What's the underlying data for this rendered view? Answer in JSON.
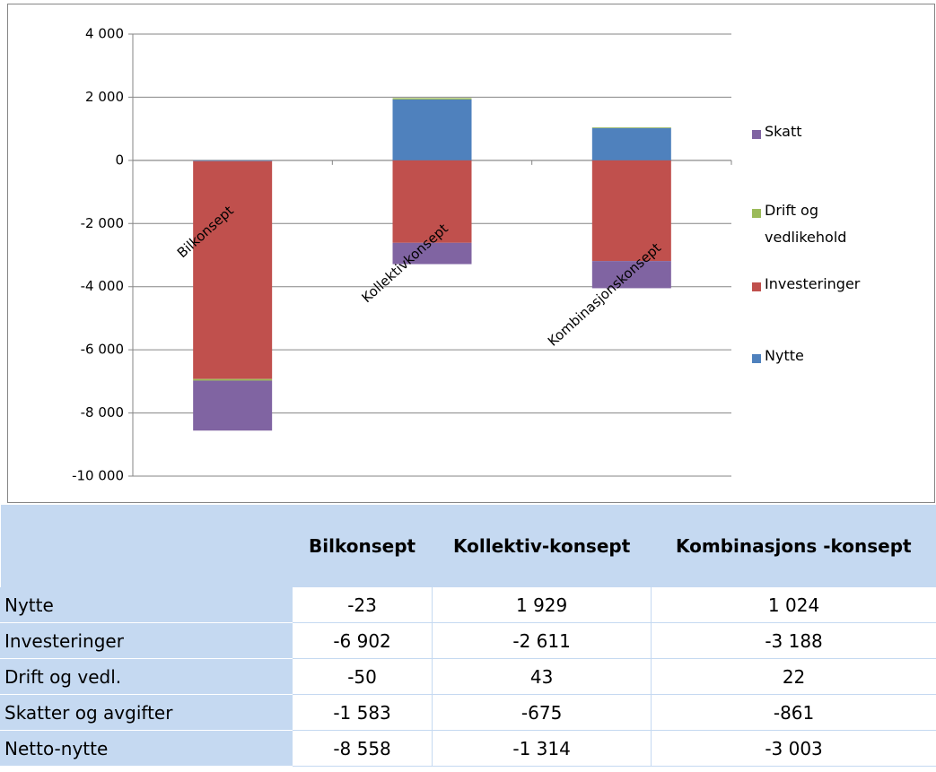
{
  "chart_data": {
    "type": "stacked_bar",
    "categories": [
      "Bilkonsept",
      "Kollektivkonsept",
      "Kombinasjonskonsept"
    ],
    "series": [
      {
        "name": "Nytte",
        "color": "#4f81bd",
        "values": [
          -23,
          1929,
          1024
        ]
      },
      {
        "name": "Investeringer",
        "color": "#c0504d",
        "values": [
          -6902,
          -2611,
          -3188
        ]
      },
      {
        "name": "Drift og vedlikehold",
        "color": "#9bbb59",
        "values": [
          -50,
          43,
          22
        ]
      },
      {
        "name": "Skatt",
        "color": "#8064a2",
        "values": [
          -1583,
          -675,
          -861
        ]
      }
    ],
    "ylim": [
      -10000,
      4000
    ],
    "yticks": [
      {
        "value": -10000,
        "label": "-10 000"
      },
      {
        "value": -8000,
        "label": "-8 000"
      },
      {
        "value": -6000,
        "label": "-6 000"
      },
      {
        "value": -4000,
        "label": "-4 000"
      },
      {
        "value": -2000,
        "label": "-2 000"
      },
      0,
      {
        "value": 2000,
        "label": "2 000"
      },
      {
        "value": 4000,
        "label": "4 000"
      }
    ],
    "grid": true,
    "legend": "right"
  },
  "table": {
    "header": [
      "Bilkonsept",
      "Kollektiv-konsept",
      "Kombinasjons -konsept"
    ],
    "rows": [
      [
        "Nytte",
        "-23",
        "1 929",
        "1 024"
      ],
      [
        "Investeringer",
        "-6 902",
        "-2 611",
        "-3 188"
      ],
      [
        "Drift og vedl.",
        "-50",
        "43",
        "22"
      ],
      [
        "Skatter og avgifter",
        "-1 583",
        "-675",
        "-861"
      ],
      [
        "Netto-nytte",
        "-8 558",
        "-1 314",
        "-3 003"
      ]
    ]
  }
}
